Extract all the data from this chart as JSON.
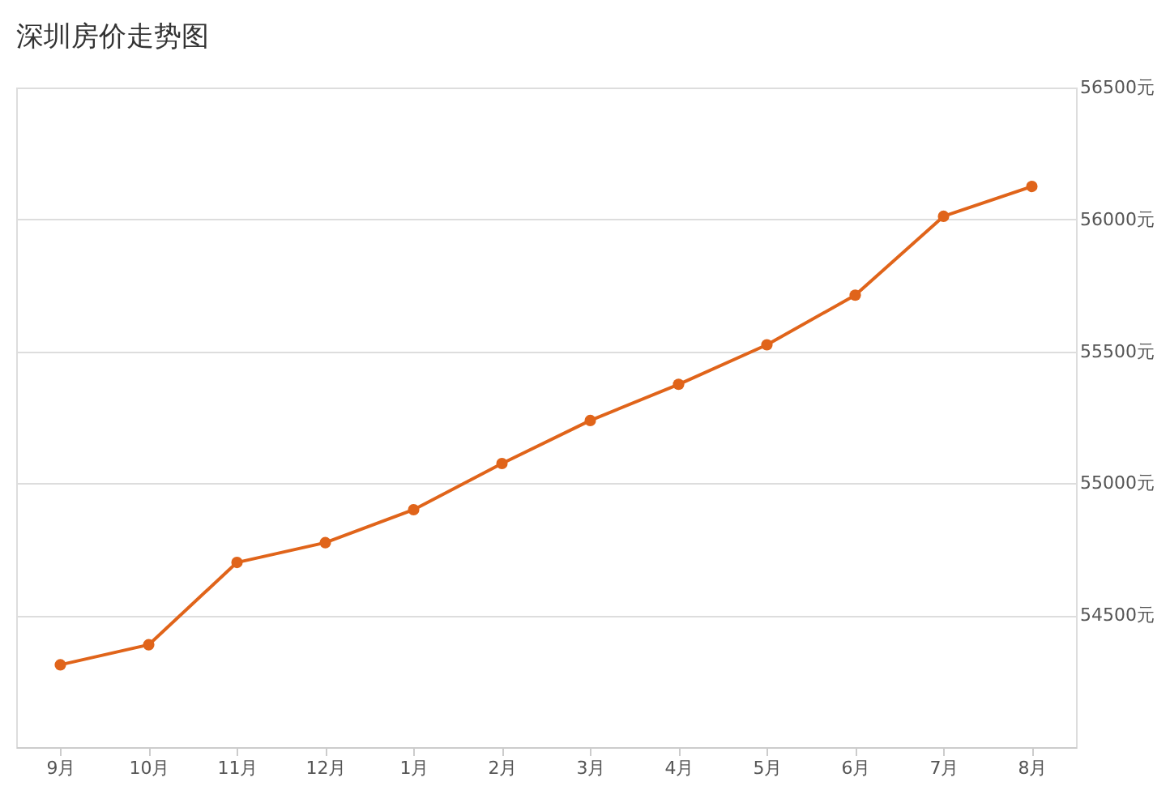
{
  "chart_data": {
    "type": "line",
    "title": "深圳房价走势图",
    "categories": [
      "9月",
      "10月",
      "11月",
      "12月",
      "1月",
      "2月",
      "3月",
      "4月",
      "5月",
      "6月",
      "7月",
      "8月"
    ],
    "series": [
      {
        "color": "#e0641a",
        "values": [
          54312,
          54388,
          54700,
          54775,
          54900,
          55075,
          55238,
          55375,
          55525,
          55713,
          56012,
          56125
        ]
      }
    ],
    "ylim": [
      54000,
      56500
    ],
    "yticks": [
      {
        "value": 54500,
        "label": "54500元"
      },
      {
        "value": 55000,
        "label": "55000元"
      },
      {
        "value": 55500,
        "label": "55500元"
      },
      {
        "value": 56000,
        "label": "56000元"
      },
      {
        "value": 56500,
        "label": "56500元"
      }
    ],
    "grid": "y",
    "marker": "circle",
    "line_style": "solid"
  }
}
